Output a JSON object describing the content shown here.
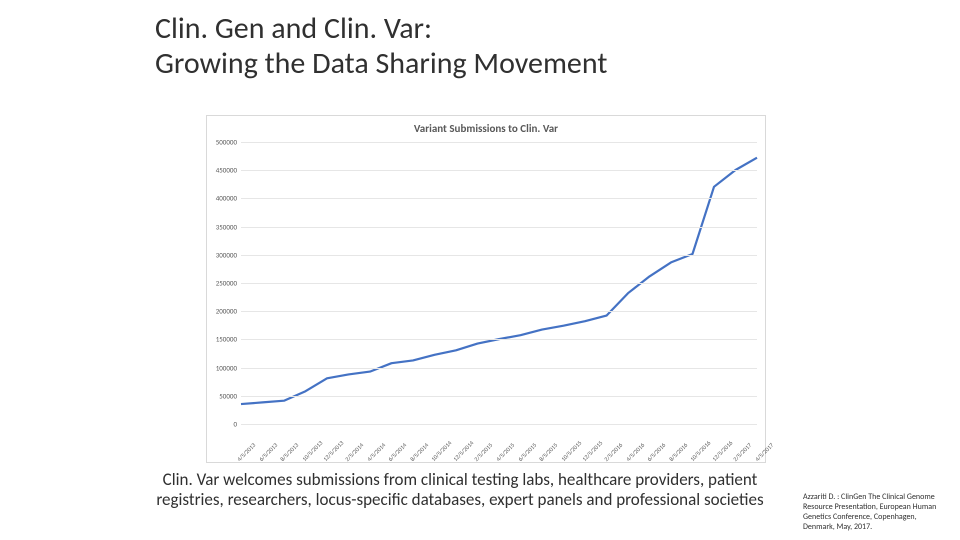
{
  "title_line1": "Clin. Gen and Clin. Var:",
  "title_line2": "Growing the Data Sharing Movement",
  "caption": "Clin. Var welcomes submissions from clinical testing labs, healthcare providers, patient registries, researchers, locus-specific databases, expert panels and professional societies",
  "citation": "Azzariti D. : ClinGen The Clinical Genome Resource Presentation, European Human Genetics Conference, Copenhagen, Denmark, May, 2017.",
  "chart": {
    "type": "line",
    "title": "Variant Submissions to Clin. Var",
    "title_fontsize": 11,
    "title_color": "#595959",
    "background_color": "#ffffff",
    "border_color": "#d9d9d9",
    "grid_color": "#e6e6e6",
    "line_color": "#4472c4",
    "line_width": 2.2,
    "ylim": [
      0,
      500000
    ],
    "ytick_step": 50000,
    "ytick_labels": [
      "0",
      "50000",
      "100000",
      "150000",
      "200000",
      "250000",
      "300000",
      "350000",
      "400000",
      "450000",
      "500000"
    ],
    "ytick_fontsize": 7,
    "xtick_fontsize": 6,
    "xtick_rotation_deg": -45,
    "categories": [
      "4/5/2013",
      "6/5/2013",
      "8/5/2013",
      "10/5/2013",
      "12/5/2013",
      "2/5/2014",
      "4/5/2014",
      "6/5/2014",
      "8/5/2014",
      "10/5/2014",
      "12/5/2014",
      "2/5/2015",
      "4/5/2015",
      "6/5/2015",
      "8/5/2015",
      "10/5/2015",
      "12/5/2015",
      "2/5/2016",
      "4/5/2016",
      "6/5/2016",
      "8/5/2016",
      "10/5/2016",
      "12/5/2016",
      "2/5/2017",
      "4/5/2017"
    ],
    "values": [
      32000,
      35000,
      38000,
      55000,
      78000,
      85000,
      90000,
      105000,
      110000,
      120000,
      128000,
      140000,
      148000,
      155000,
      165000,
      172000,
      180000,
      190000,
      230000,
      260000,
      285000,
      300000,
      420000,
      450000,
      472000
    ]
  }
}
